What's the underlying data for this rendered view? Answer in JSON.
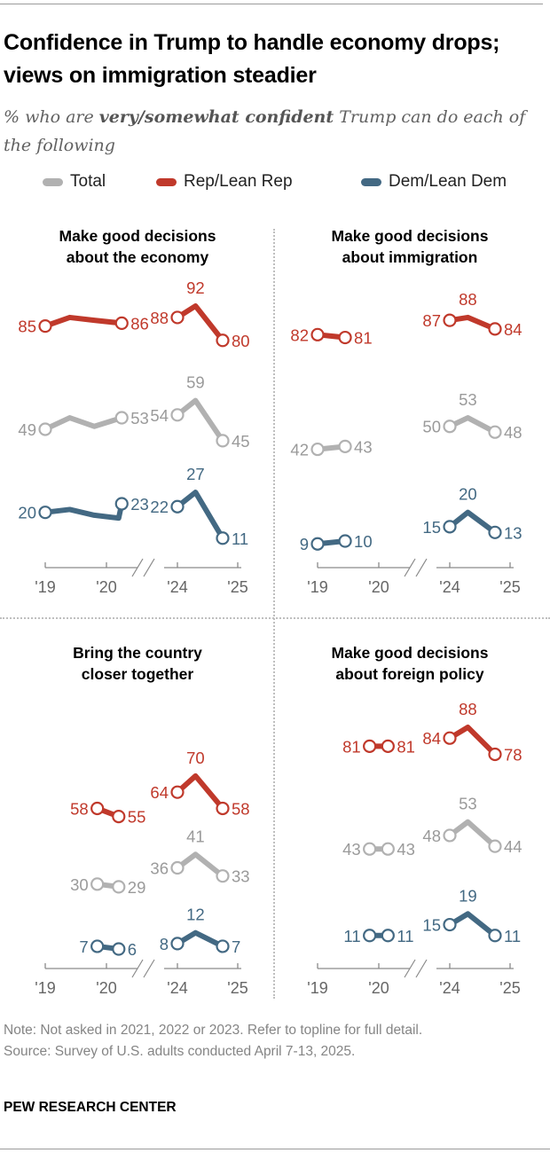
{
  "header": {
    "title": "Confidence in Trump to handle economy drops; views on immigration steadier",
    "subtitle_pre": "% who are ",
    "subtitle_bold": "very/somewhat confident",
    "subtitle_post": " Trump can do each of the following"
  },
  "legend": [
    {
      "name": "Total",
      "color": "#b1b1b1"
    },
    {
      "name": "Rep/Lean Rep",
      "color": "#c0392b"
    },
    {
      "name": "Dem/Lean Dem",
      "color": "#436983"
    }
  ],
  "footer": {
    "note": "Note: Not asked in 2021, 2022 or 2023. Refer to topline for full detail.",
    "source": "Source: Survey of U.S. adults conducted April 7-13, 2025.",
    "brand": "PEW RESEARCH CENTER"
  },
  "chart_data": [
    {
      "type": "line",
      "title": [
        "Make good decisions",
        "about the economy"
      ],
      "xticks": [
        "'19",
        "'20",
        "'24",
        "'25"
      ],
      "axis_break": "between '20 and '24",
      "series": [
        {
          "name": "Rep/Lean Rep",
          "segments": [
            {
              "x": [
                2019.0,
                2019.4,
                2019.8,
                2020.25
              ],
              "values": [
                85,
                88,
                87,
                86
              ],
              "labels": [
                85,
                null,
                null,
                86
              ]
            },
            {
              "x": [
                2024.0,
                2024.3,
                2024.75
              ],
              "values": [
                88,
                92,
                80
              ],
              "labels": [
                88,
                92,
                80
              ]
            }
          ]
        },
        {
          "name": "Total",
          "segments": [
            {
              "x": [
                2019.0,
                2019.4,
                2019.8,
                2020.25
              ],
              "values": [
                49,
                53,
                50,
                53
              ],
              "labels": [
                49,
                null,
                null,
                53
              ]
            },
            {
              "x": [
                2024.0,
                2024.3,
                2024.75
              ],
              "values": [
                54,
                59,
                45
              ],
              "labels": [
                54,
                59,
                45
              ]
            }
          ]
        },
        {
          "name": "Dem/Lean Dem",
          "segments": [
            {
              "x": [
                2019.0,
                2019.4,
                2019.8,
                2020.2,
                2020.25
              ],
              "values": [
                20,
                21,
                19,
                18,
                23
              ],
              "labels": [
                20,
                null,
                null,
                null,
                23
              ]
            },
            {
              "x": [
                2024.0,
                2024.3,
                2024.75
              ],
              "values": [
                22,
                27,
                11
              ],
              "labels": [
                22,
                27,
                11
              ]
            }
          ]
        }
      ]
    },
    {
      "type": "line",
      "title": [
        "Make good decisions",
        "about immigration"
      ],
      "xticks": [
        "'19",
        "'20",
        "'24",
        "'25"
      ],
      "axis_break": "between '20 and '24",
      "series": [
        {
          "name": "Rep/Lean Rep",
          "segments": [
            {
              "x": [
                2019.0,
                2019.45
              ],
              "values": [
                82,
                81
              ],
              "labels": [
                82,
                81
              ]
            },
            {
              "x": [
                2024.0,
                2024.3,
                2024.75
              ],
              "values": [
                87,
                88,
                84
              ],
              "labels": [
                87,
                88,
                84
              ]
            }
          ]
        },
        {
          "name": "Total",
          "segments": [
            {
              "x": [
                2019.0,
                2019.45
              ],
              "values": [
                42,
                43
              ],
              "labels": [
                42,
                43
              ]
            },
            {
              "x": [
                2024.0,
                2024.3,
                2024.75
              ],
              "values": [
                50,
                53,
                48
              ],
              "labels": [
                50,
                53,
                48
              ]
            }
          ]
        },
        {
          "name": "Dem/Lean Dem",
          "segments": [
            {
              "x": [
                2019.0,
                2019.45
              ],
              "values": [
                9,
                10
              ],
              "labels": [
                9,
                10
              ]
            },
            {
              "x": [
                2024.0,
                2024.3,
                2024.75
              ],
              "values": [
                15,
                20,
                13
              ],
              "labels": [
                15,
                20,
                13
              ]
            }
          ]
        }
      ]
    },
    {
      "type": "line",
      "title": [
        "Bring the country",
        "closer together"
      ],
      "xticks": [
        "'19",
        "'20",
        "'24",
        "'25"
      ],
      "axis_break": "between '20 and '24",
      "series": [
        {
          "name": "Rep/Lean Rep",
          "segments": [
            {
              "x": [
                2019.85,
                2020.2
              ],
              "values": [
                58,
                55
              ],
              "labels": [
                58,
                55
              ]
            },
            {
              "x": [
                2024.0,
                2024.3,
                2024.75
              ],
              "values": [
                64,
                70,
                58
              ],
              "labels": [
                64,
                70,
                58
              ]
            }
          ]
        },
        {
          "name": "Total",
          "segments": [
            {
              "x": [
                2019.85,
                2020.2
              ],
              "values": [
                30,
                29
              ],
              "labels": [
                30,
                29
              ]
            },
            {
              "x": [
                2024.0,
                2024.3,
                2024.75
              ],
              "values": [
                36,
                41,
                33
              ],
              "labels": [
                36,
                41,
                33
              ]
            }
          ]
        },
        {
          "name": "Dem/Lean Dem",
          "segments": [
            {
              "x": [
                2019.85,
                2020.2
              ],
              "values": [
                7,
                6
              ],
              "labels": [
                7,
                6
              ]
            },
            {
              "x": [
                2024.0,
                2024.3,
                2024.75
              ],
              "values": [
                8,
                12,
                7
              ],
              "labels": [
                8,
                12,
                7
              ]
            }
          ]
        }
      ]
    },
    {
      "type": "line",
      "title": [
        "Make good decisions",
        "about foreign policy"
      ],
      "xticks": [
        "'19",
        "'20",
        "'24",
        "'25"
      ],
      "axis_break": "between '20 and '24",
      "series": [
        {
          "name": "Rep/Lean Rep",
          "segments": [
            {
              "x": [
                2019.85,
                2020.15
              ],
              "values": [
                81,
                81
              ],
              "labels": [
                81,
                81
              ]
            },
            {
              "x": [
                2024.0,
                2024.3,
                2024.75
              ],
              "values": [
                84,
                88,
                78
              ],
              "labels": [
                84,
                88,
                78
              ]
            }
          ]
        },
        {
          "name": "Total",
          "segments": [
            {
              "x": [
                2019.85,
                2020.15
              ],
              "values": [
                43,
                43
              ],
              "labels": [
                43,
                43
              ]
            },
            {
              "x": [
                2024.0,
                2024.3,
                2024.75
              ],
              "values": [
                48,
                53,
                44
              ],
              "labels": [
                48,
                53,
                44
              ]
            }
          ]
        },
        {
          "name": "Dem/Lean Dem",
          "segments": [
            {
              "x": [
                2019.85,
                2020.15
              ],
              "values": [
                11,
                11
              ],
              "labels": [
                11,
                11
              ]
            },
            {
              "x": [
                2024.0,
                2024.3,
                2024.75
              ],
              "values": [
                15,
                19,
                11
              ],
              "labels": [
                15,
                19,
                11
              ]
            }
          ]
        }
      ]
    }
  ]
}
